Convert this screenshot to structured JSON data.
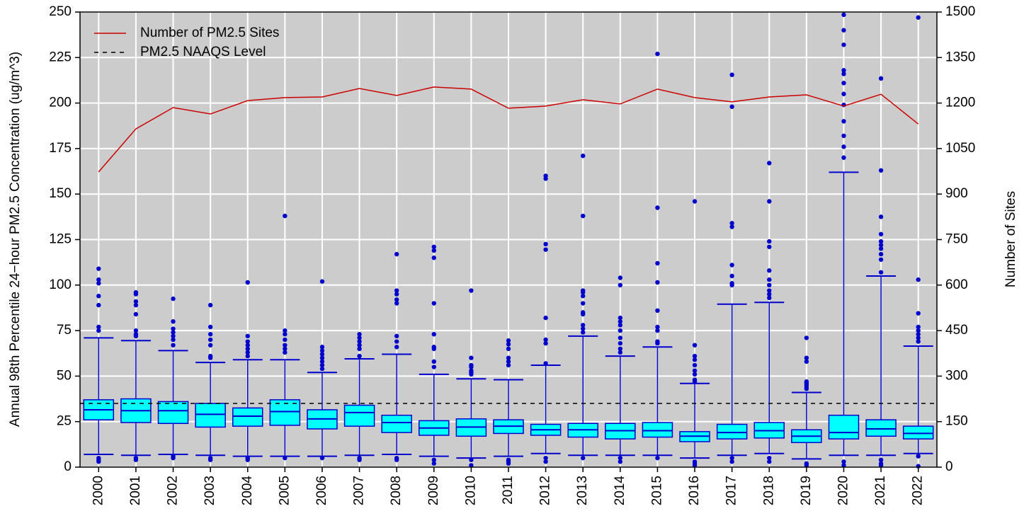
{
  "chart_data": {
    "type": "box",
    "ylabel": "Annual 98th Percentile 24−hour PM2.5 Concentration (ug/m^3)",
    "y2label": "Number of Sites",
    "categories": [
      "2000",
      "2001",
      "2002",
      "2003",
      "2004",
      "2005",
      "2006",
      "2007",
      "2008",
      "2009",
      "2010",
      "2011",
      "2012",
      "2013",
      "2014",
      "2015",
      "2016",
      "2017",
      "2018",
      "2019",
      "2020",
      "2021",
      "2022"
    ],
    "ylim": [
      0,
      250
    ],
    "yticks": [
      0,
      25,
      50,
      75,
      100,
      125,
      150,
      175,
      200,
      225,
      250
    ],
    "y2lim": [
      0,
      1500
    ],
    "y2ticks": [
      0,
      150,
      300,
      450,
      600,
      750,
      900,
      1050,
      1200,
      1350,
      1500
    ],
    "grid": true,
    "background": "#cccccc",
    "box_fill": "#00ffff",
    "box_color": "#0000cd",
    "boxes": [
      {
        "low": 7,
        "q1": 26,
        "median": 31.5,
        "q3": 37,
        "high": 71,
        "outliers": [
          109,
          103,
          101,
          94,
          89,
          77,
          75,
          5,
          4,
          3
        ]
      },
      {
        "low": 6.5,
        "q1": 24.5,
        "median": 31,
        "q3": 37.5,
        "high": 69.5,
        "outliers": [
          96,
          95,
          91,
          89,
          84,
          75,
          73,
          72,
          5,
          4
        ]
      },
      {
        "low": 7,
        "q1": 24,
        "median": 31,
        "q3": 36,
        "high": 64,
        "outliers": [
          92.5,
          80,
          76,
          74,
          72,
          70,
          67,
          6,
          5
        ]
      },
      {
        "low": 6.5,
        "q1": 22,
        "median": 29,
        "q3": 35,
        "high": 57.5,
        "outliers": [
          89,
          77,
          73,
          70,
          67,
          61,
          60,
          5,
          4
        ]
      },
      {
        "low": 6,
        "q1": 22.5,
        "median": 28,
        "q3": 32.5,
        "high": 59,
        "outliers": [
          101.5,
          72,
          69,
          67,
          65,
          63,
          61,
          5,
          4
        ]
      },
      {
        "low": 6,
        "q1": 23,
        "median": 30.5,
        "q3": 37,
        "high": 59,
        "outliers": [
          138,
          75,
          73,
          70,
          67,
          65,
          63,
          5
        ]
      },
      {
        "low": 6,
        "q1": 21,
        "median": 26.5,
        "q3": 31.5,
        "high": 52,
        "outliers": [
          102,
          66,
          64,
          62,
          60,
          58,
          56,
          54,
          5
        ]
      },
      {
        "low": 6.5,
        "q1": 22.5,
        "median": 30,
        "q3": 34,
        "high": 59.5,
        "outliers": [
          73,
          71,
          69,
          67,
          65,
          61,
          5,
          4
        ]
      },
      {
        "low": 7,
        "q1": 19,
        "median": 24.5,
        "q3": 28.5,
        "high": 62,
        "outliers": [
          117,
          97,
          95,
          92,
          90,
          72,
          69,
          66,
          5,
          4
        ]
      },
      {
        "low": 6,
        "q1": 17.5,
        "median": 21.5,
        "q3": 25.5,
        "high": 51,
        "outliers": [
          121,
          119,
          115,
          90,
          73,
          66,
          65,
          58,
          55,
          4,
          2
        ]
      },
      {
        "low": 5,
        "q1": 17,
        "median": 22,
        "q3": 26.5,
        "high": 48.5,
        "outliers": [
          97,
          60,
          56,
          55,
          53,
          52,
          51,
          4,
          1
        ]
      },
      {
        "low": 6,
        "q1": 18.5,
        "median": 22.5,
        "q3": 26,
        "high": 48,
        "outliers": [
          69.5,
          67.5,
          65,
          60,
          58,
          56,
          4,
          3,
          2
        ]
      },
      {
        "low": 7.5,
        "q1": 17.5,
        "median": 20.5,
        "q3": 23.5,
        "high": 56,
        "outliers": [
          160,
          158.5,
          122.5,
          119.5,
          82,
          70,
          68,
          57,
          5,
          3
        ]
      },
      {
        "low": 6.5,
        "q1": 16.5,
        "median": 20.5,
        "q3": 24,
        "high": 72,
        "outliers": [
          171,
          138,
          97,
          96,
          94,
          90,
          85,
          84,
          78,
          76,
          74,
          5
        ]
      },
      {
        "low": 6.5,
        "q1": 15.5,
        "median": 20,
        "q3": 24,
        "high": 61,
        "outliers": [
          104,
          100,
          82,
          80,
          78,
          75,
          71,
          68,
          65,
          63,
          5,
          3
        ]
      },
      {
        "low": 6.5,
        "q1": 16.5,
        "median": 20,
        "q3": 24.5,
        "high": 66,
        "outliers": [
          227,
          142.5,
          112,
          101.5,
          86,
          77,
          75,
          69,
          68,
          5
        ]
      },
      {
        "low": 5,
        "q1": 14,
        "median": 17,
        "q3": 19.5,
        "high": 46,
        "outliers": [
          146,
          67,
          61,
          59,
          56,
          53,
          51,
          48,
          47,
          3,
          2,
          1
        ]
      },
      {
        "low": 6.5,
        "q1": 15.5,
        "median": 19,
        "q3": 23.5,
        "high": 89.5,
        "outliers": [
          215.5,
          198,
          134,
          132,
          111,
          105,
          101,
          100,
          5,
          3
        ]
      },
      {
        "low": 7.5,
        "q1": 16,
        "median": 20,
        "q3": 24.5,
        "high": 90.5,
        "outliers": [
          167,
          146,
          124,
          121,
          108,
          103,
          100,
          97,
          95,
          93,
          5,
          3
        ]
      },
      {
        "low": 4.5,
        "q1": 13.5,
        "median": 17,
        "q3": 20.5,
        "high": 41,
        "outliers": [
          71,
          60,
          58,
          47,
          46,
          45,
          44,
          43,
          2,
          1
        ]
      },
      {
        "low": 6.5,
        "q1": 15.5,
        "median": 19,
        "q3": 28.5,
        "high": 162,
        "outliers": [
          248.5,
          240,
          232,
          218,
          216,
          211,
          205,
          199,
          190,
          182,
          176,
          170,
          3,
          1
        ]
      },
      {
        "low": 6.5,
        "q1": 17,
        "median": 21,
        "q3": 26,
        "high": 105,
        "outliers": [
          213.5,
          163,
          137.5,
          128,
          124,
          122,
          120,
          117,
          114,
          107,
          4,
          2,
          1
        ]
      },
      {
        "low": 7.5,
        "q1": 15.5,
        "median": 18.5,
        "q3": 22.5,
        "high": 66.5,
        "outliers": [
          247,
          103,
          84.5,
          77,
          75,
          73,
          71,
          69,
          6,
          0.5
        ]
      }
    ],
    "line": {
      "name": "Number of PM2.5 Sites",
      "color": "#cc0000",
      "axis": "y2",
      "values": [
        973,
        1115,
        1185,
        1164,
        1208,
        1218,
        1220,
        1248,
        1225,
        1253,
        1246,
        1183,
        1190,
        1211,
        1197,
        1246,
        1218,
        1204,
        1220,
        1227,
        1190,
        1229,
        1131
      ]
    },
    "reference": {
      "name": "PM2.5 NAAQS Level",
      "value": 35,
      "color": "#000000"
    },
    "legend": "top-left"
  }
}
